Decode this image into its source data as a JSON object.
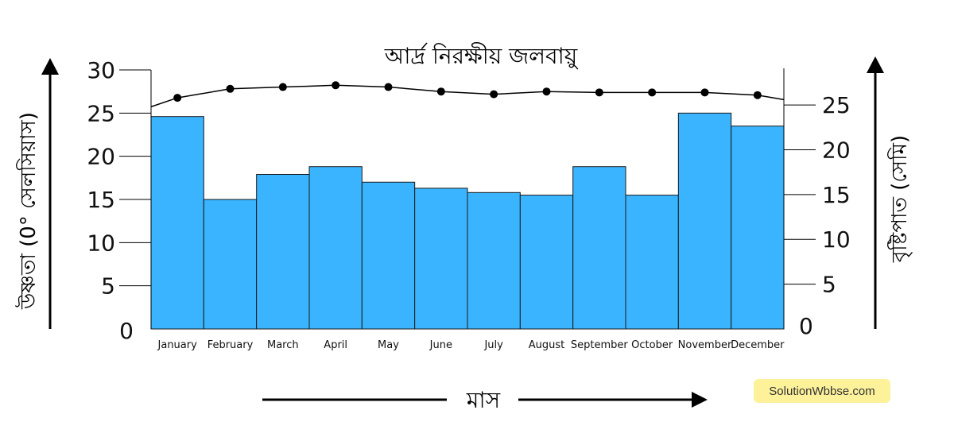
{
  "chart_data": {
    "type": "bar",
    "title": "আর্দ্র নিরক্ষীয় জলবায়ু",
    "xlabel": "মাস",
    "ylabel_left": "উষ্ণতা (0° সেলসিয়াস)",
    "ylabel_right": "বৃষ্টিপাত (সেমি)",
    "categories": [
      "January",
      "February",
      "March",
      "April",
      "May",
      "June",
      "July",
      "August",
      "September",
      "October",
      "November",
      "December"
    ],
    "left_axis": {
      "ylim": [
        0,
        30
      ],
      "ticks": [
        0,
        5,
        10,
        15,
        20,
        25,
        30
      ]
    },
    "right_axis": {
      "ylim": [
        0,
        29
      ],
      "ticks": [
        0,
        5,
        10,
        15,
        20,
        25
      ]
    },
    "series": [
      {
        "type": "bar",
        "axis": "left",
        "values": [
          24.6,
          15.0,
          17.9,
          18.8,
          17.0,
          16.3,
          15.8,
          15.5,
          18.8,
          15.5,
          25.0,
          23.5
        ]
      },
      {
        "type": "line",
        "axis": "right",
        "values": [
          25.8,
          26.8,
          27.0,
          27.2,
          27.0,
          26.5,
          26.2,
          26.5,
          26.4,
          26.4,
          26.4,
          26.1
        ]
      }
    ],
    "colors": {
      "bar": "#3ab4ff",
      "line": "#000000"
    },
    "grid": false
  },
  "watermark": {
    "text": "SolutionWbbse.com",
    "bg": "#fdf19a"
  }
}
